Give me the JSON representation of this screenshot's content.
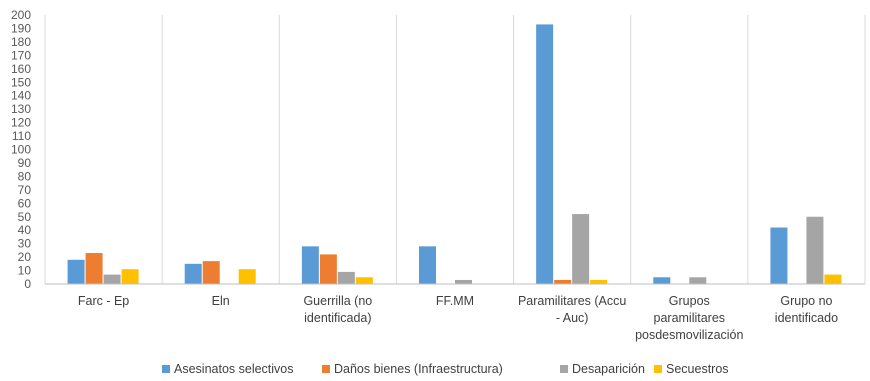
{
  "chart_data": {
    "type": "bar",
    "categories": [
      "Farc - Ep",
      "Eln",
      "Guerrilla (no identificada)",
      "FF.MM",
      "Paramilitares (Accu - Auc)",
      "Grupos paramilitares posdesmovilización",
      "Grupo no identificado"
    ],
    "category_lines": [
      [
        "Farc - Ep"
      ],
      [
        "Eln"
      ],
      [
        "Guerrilla (no",
        "identificada)"
      ],
      [
        "FF.MM"
      ],
      [
        "Paramilitares (Accu",
        "- Auc)"
      ],
      [
        "Grupos",
        "paramilitares",
        "posdesmovilización"
      ],
      [
        "Grupo no",
        "identificado"
      ]
    ],
    "series": [
      {
        "name": "Asesinatos selectivos",
        "color": "#5B9BD5",
        "values": [
          18,
          15,
          28,
          28,
          193,
          5,
          42
        ]
      },
      {
        "name": "Daños bienes (Infraestructura)",
        "color": "#ED7D31",
        "values": [
          23,
          17,
          22,
          0,
          3,
          0,
          0
        ]
      },
      {
        "name": "Desaparición",
        "color": "#A5A5A5",
        "values": [
          7,
          0,
          9,
          3,
          52,
          5,
          50
        ]
      },
      {
        "name": "Secuestros",
        "color": "#FFC000",
        "values": [
          11,
          11,
          5,
          0,
          3,
          0,
          7
        ]
      }
    ],
    "ylim": [
      0,
      200
    ],
    "y_ticks": [
      0,
      10,
      20,
      30,
      40,
      50,
      60,
      70,
      80,
      90,
      100,
      110,
      120,
      130,
      140,
      150,
      160,
      170,
      180,
      190,
      200
    ],
    "grid": "vertical separators between categories",
    "legend_position": "bottom"
  }
}
